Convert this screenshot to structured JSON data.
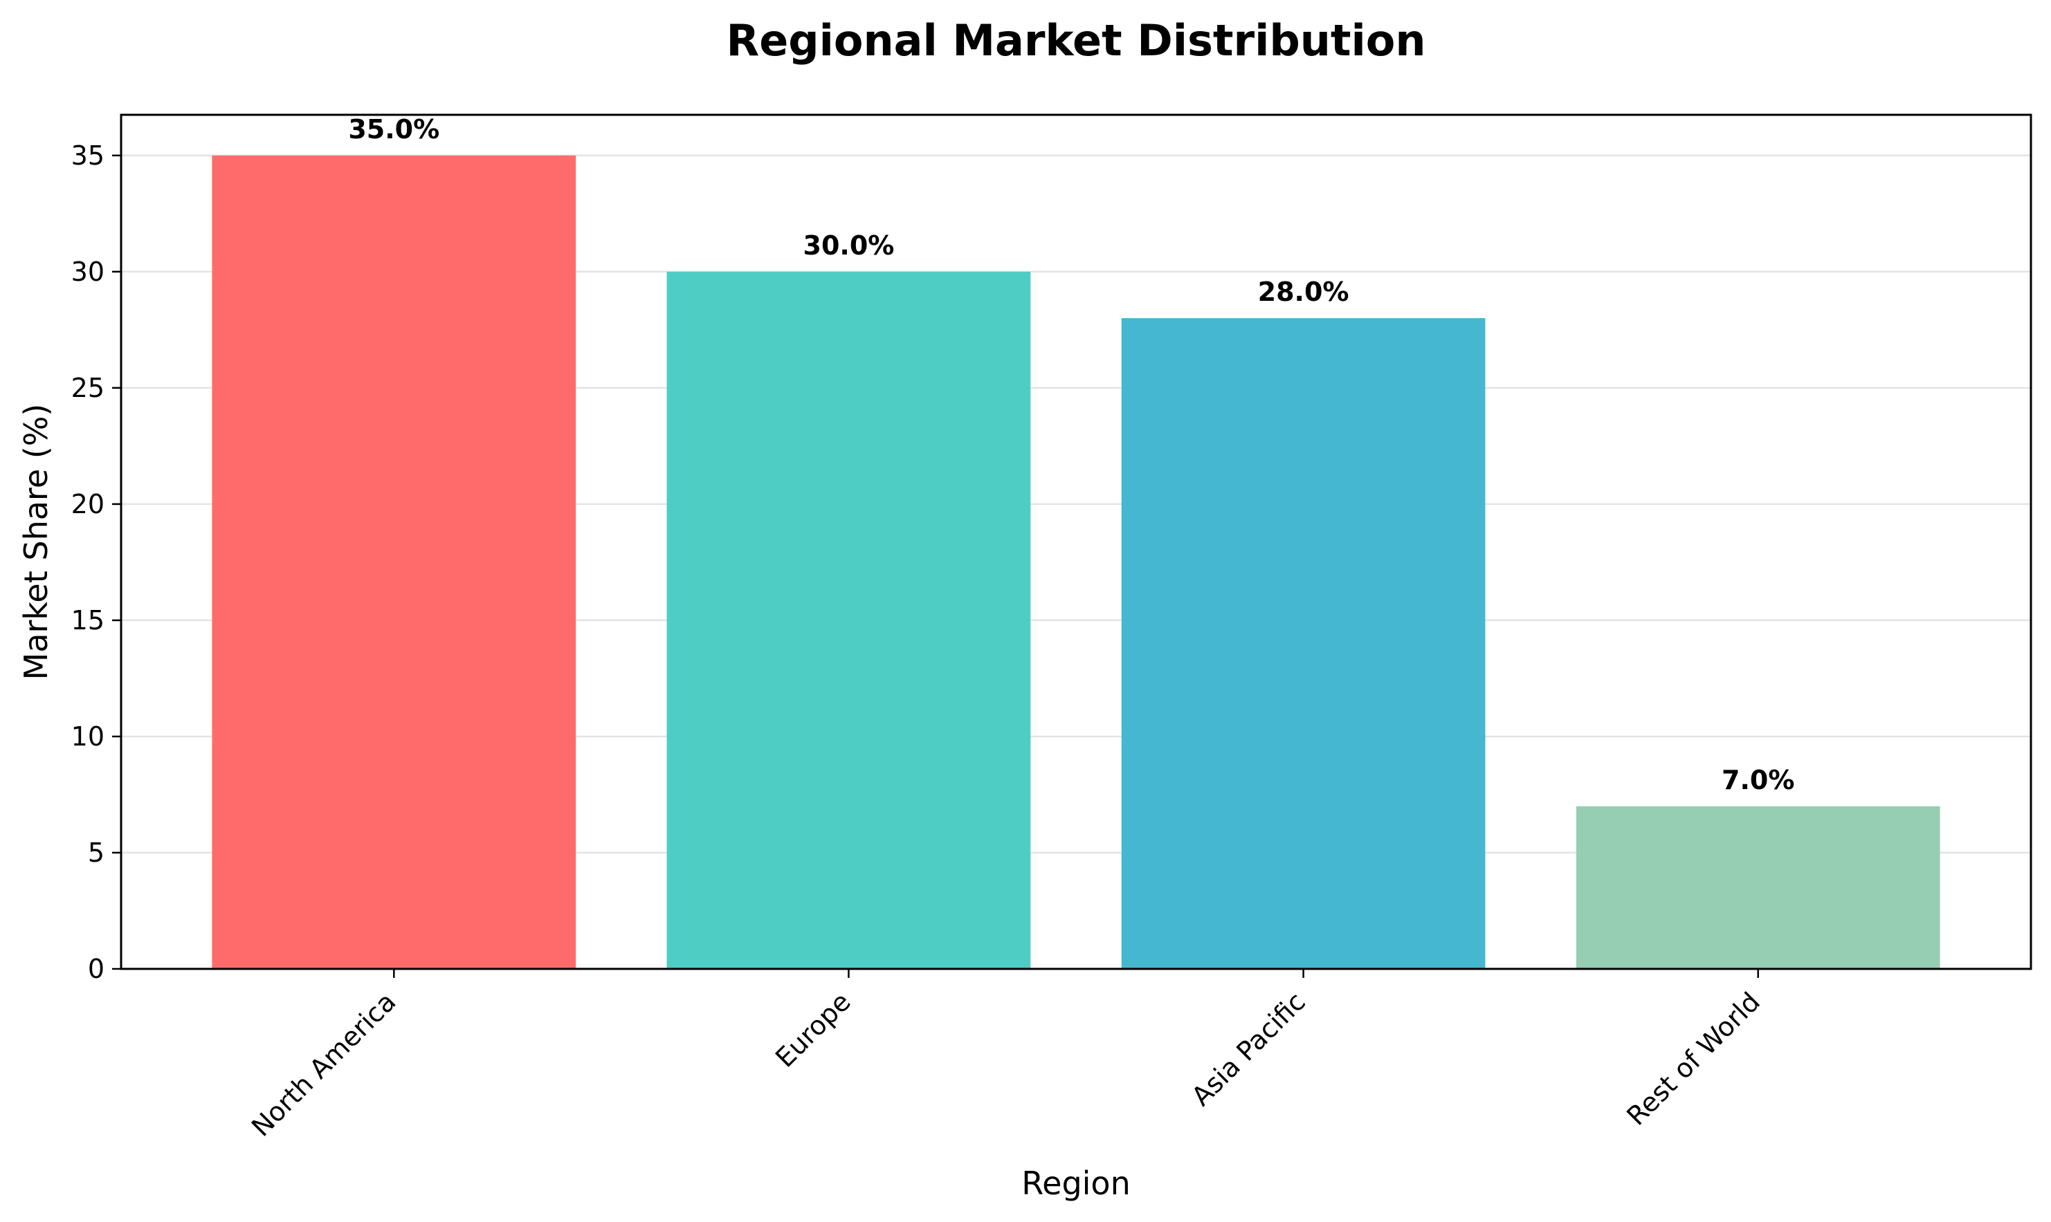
{
  "chart_data": {
    "type": "bar",
    "title": "Regional Market Distribution",
    "xlabel": "Region",
    "ylabel": "Market Share (%)",
    "categories": [
      "North America",
      "Europe",
      "Asia Pacific",
      "Rest of World"
    ],
    "values": [
      35.0,
      30.0,
      28.0,
      7.0
    ],
    "value_labels": [
      "35.0%",
      "30.0%",
      "28.0%",
      "7.0%"
    ],
    "colors": [
      "#FF6B6B",
      "#4ECDC4",
      "#45B7D1",
      "#96CEB4"
    ],
    "ylim": [
      0,
      36.75
    ],
    "yticks": [
      0,
      5,
      10,
      15,
      20,
      25,
      30,
      35
    ],
    "ytick_labels": [
      "0",
      "5",
      "10",
      "15",
      "20",
      "25",
      "30",
      "35"
    ],
    "grid": "horizontal",
    "legend": "none"
  }
}
